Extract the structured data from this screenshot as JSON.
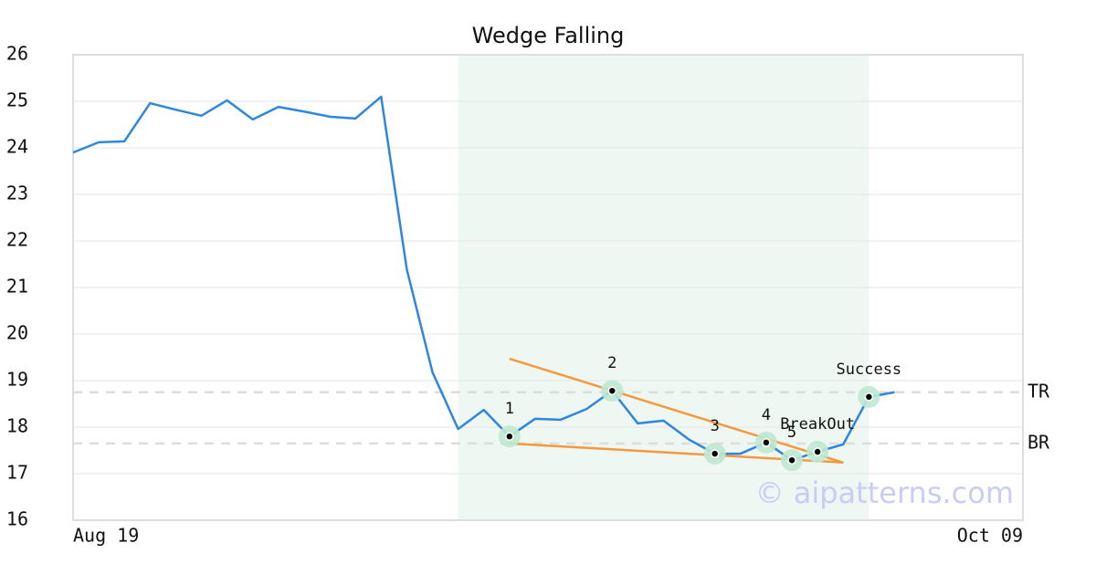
{
  "chart_data": {
    "type": "line",
    "title": "Wedge Falling",
    "categories": [
      "Aug 19",
      null,
      null,
      null,
      null,
      null,
      null,
      null,
      null,
      null,
      null,
      null,
      null,
      null,
      null,
      null,
      null,
      null,
      null,
      null,
      null,
      null,
      null,
      null,
      null,
      null,
      null,
      null,
      null,
      null,
      null,
      null,
      null,
      null,
      null,
      null,
      null,
      "Oct 09"
    ],
    "values": [
      23.9,
      24.12,
      24.14,
      24.96,
      24.82,
      24.69,
      25.02,
      24.61,
      24.88,
      24.78,
      24.67,
      24.63,
      25.1,
      21.39,
      19.18,
      17.96,
      18.37,
      17.8,
      18.18,
      18.16,
      18.39,
      18.78,
      18.08,
      18.14,
      17.73,
      17.43,
      17.43,
      17.67,
      17.29,
      17.47,
      17.63,
      18.65,
      18.75,
      null,
      null,
      null,
      null,
      null
    ],
    "color": "#2e86de",
    "ylim": [
      16,
      26
    ],
    "yticks": [
      16,
      17,
      18,
      19,
      20,
      21,
      22,
      23,
      24,
      25,
      26
    ],
    "grid": true,
    "highlight": {
      "x": [
        15,
        31
      ],
      "color": "#eef7f2"
    },
    "trendlines": [
      {
        "x": [
          17,
          30
        ],
        "y": [
          19.47,
          17.24
        ],
        "color": "#f5993c"
      },
      {
        "x": [
          17,
          30
        ],
        "y": [
          17.65,
          17.24
        ],
        "color": "#f5993c"
      }
    ],
    "levels": [
      {
        "label": "TR",
        "value": 18.75
      },
      {
        "label": "BR",
        "value": 17.65
      }
    ],
    "points": [
      {
        "x": 17,
        "y": 17.8,
        "label": "1"
      },
      {
        "x": 21,
        "y": 18.78,
        "label": "2"
      },
      {
        "x": 25,
        "y": 17.43,
        "label": "3"
      },
      {
        "x": 27,
        "y": 17.67,
        "label": "4"
      },
      {
        "x": 28,
        "y": 17.29,
        "label": "5"
      },
      {
        "x": 29,
        "y": 17.47,
        "label": "BreakOut"
      },
      {
        "x": 31,
        "y": 18.65,
        "label": "Success"
      }
    ],
    "watermark": "© aipatterns.com"
  }
}
